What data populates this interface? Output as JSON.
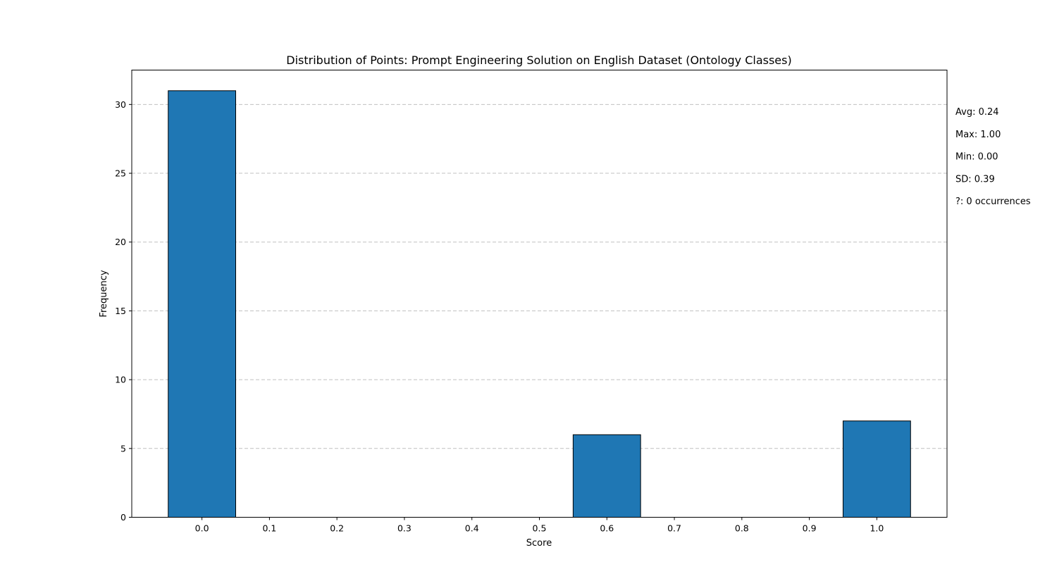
{
  "chart_data": {
    "type": "bar",
    "title": "Distribution of Points: Prompt Engineering Solution on English Dataset (Ontology Classes)",
    "xlabel": "Score",
    "ylabel": "Frequency",
    "x_ticks": [
      "0.0",
      "0.1",
      "0.2",
      "0.3",
      "0.4",
      "0.5",
      "0.6",
      "0.7",
      "0.8",
      "0.9",
      "1.0"
    ],
    "y_ticks": [
      "0",
      "5",
      "10",
      "15",
      "20",
      "25",
      "30"
    ],
    "xlim": [
      -0.104,
      1.104
    ],
    "ylim": [
      0,
      32.5
    ],
    "bar_width": 0.1,
    "bars": [
      {
        "x": 0.0,
        "value": 31
      },
      {
        "x": 0.6,
        "value": 6
      },
      {
        "x": 1.0,
        "value": 7
      }
    ],
    "bar_color": "#1f77b4",
    "bar_edge_color": "#000000",
    "grid": "y-dashed",
    "stats": [
      "Avg: 0.24",
      "Max: 1.00",
      "Min: 0.00",
      "SD: 0.39",
      "?: 0 occurrences"
    ]
  }
}
